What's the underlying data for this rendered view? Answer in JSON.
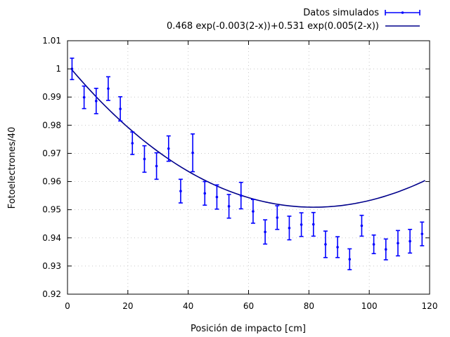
{
  "chart_data": {
    "type": "scatter",
    "xlabel": "Posición de impacto [cm]",
    "ylabel": "Fotoelectrones/40",
    "xlim": [
      0,
      120
    ],
    "ylim": [
      0.92,
      1.01
    ],
    "x_ticks": [
      0,
      20,
      40,
      60,
      80,
      100,
      120
    ],
    "x_tick_labels": [
      "0",
      "20",
      "40",
      "60",
      "80",
      "100",
      "120"
    ],
    "y_ticks": [
      0.92,
      0.93,
      0.94,
      0.95,
      0.96,
      0.97,
      0.98,
      0.99,
      1.0,
      1.01
    ],
    "y_tick_labels": [
      "0.92",
      "0.93",
      "0.94",
      "0.95",
      "0.96",
      "0.97",
      "0.98",
      "0.99",
      "1",
      "1.01"
    ],
    "grid": true,
    "legend_position": "top-right",
    "series": [
      {
        "name": "Datos simulados",
        "kind": "errorbar",
        "color": "#0000ff",
        "points": [
          {
            "x": 1.5,
            "y": 1.0,
            "yerr": 0.0038
          },
          {
            "x": 5.5,
            "y": 0.9899,
            "yerr": 0.004
          },
          {
            "x": 9.5,
            "y": 0.9886,
            "yerr": 0.0045
          },
          {
            "x": 13.5,
            "y": 0.993,
            "yerr": 0.0042
          },
          {
            "x": 17.5,
            "y": 0.9858,
            "yerr": 0.0043
          },
          {
            "x": 21.5,
            "y": 0.9736,
            "yerr": 0.004
          },
          {
            "x": 25.5,
            "y": 0.968,
            "yerr": 0.0047
          },
          {
            "x": 29.5,
            "y": 0.9655,
            "yerr": 0.0047
          },
          {
            "x": 33.5,
            "y": 0.9717,
            "yerr": 0.0045
          },
          {
            "x": 37.5,
            "y": 0.9566,
            "yerr": 0.0042
          },
          {
            "x": 41.5,
            "y": 0.9702,
            "yerr": 0.0067
          },
          {
            "x": 45.5,
            "y": 0.9558,
            "yerr": 0.0042
          },
          {
            "x": 49.5,
            "y": 0.9545,
            "yerr": 0.0043
          },
          {
            "x": 53.5,
            "y": 0.9512,
            "yerr": 0.0042
          },
          {
            "x": 57.5,
            "y": 0.955,
            "yerr": 0.0047
          },
          {
            "x": 61.5,
            "y": 0.9494,
            "yerr": 0.0042
          },
          {
            "x": 65.5,
            "y": 0.9421,
            "yerr": 0.0043
          },
          {
            "x": 69.5,
            "y": 0.9472,
            "yerr": 0.0042
          },
          {
            "x": 73.5,
            "y": 0.9435,
            "yerr": 0.0042
          },
          {
            "x": 77.5,
            "y": 0.9447,
            "yerr": 0.0042
          },
          {
            "x": 81.5,
            "y": 0.9448,
            "yerr": 0.0042
          },
          {
            "x": 85.5,
            "y": 0.9377,
            "yerr": 0.0047
          },
          {
            "x": 89.5,
            "y": 0.9367,
            "yerr": 0.0037
          },
          {
            "x": 93.5,
            "y": 0.9324,
            "yerr": 0.0037
          },
          {
            "x": 97.5,
            "y": 0.9443,
            "yerr": 0.0037
          },
          {
            "x": 101.5,
            "y": 0.9377,
            "yerr": 0.0033
          },
          {
            "x": 105.5,
            "y": 0.9359,
            "yerr": 0.0037
          },
          {
            "x": 109.5,
            "y": 0.9381,
            "yerr": 0.0045
          },
          {
            "x": 113.5,
            "y": 0.9388,
            "yerr": 0.0042
          },
          {
            "x": 117.5,
            "y": 0.9414,
            "yerr": 0.0042
          }
        ]
      },
      {
        "name": "0.468 exp(-0.003(2-x))+0.531 exp(0.005(2-x))",
        "kind": "function",
        "color": "#00008b",
        "a": 0.468,
        "b": -0.003,
        "c": 0.531,
        "d": 0.005,
        "x0": 2,
        "x_from": 1.5,
        "x_to": 118.5
      }
    ]
  }
}
